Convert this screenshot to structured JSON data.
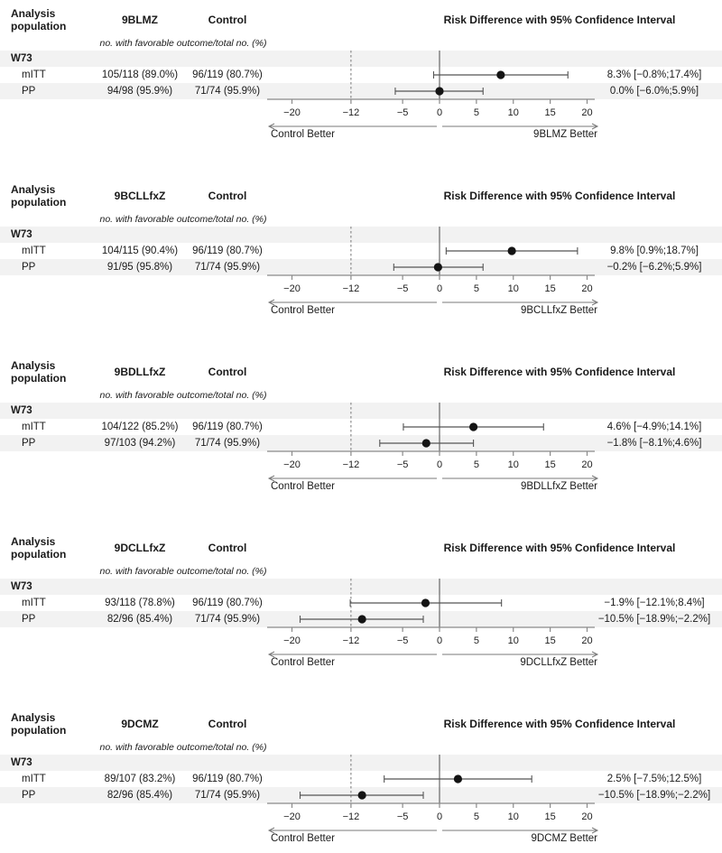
{
  "figure": {
    "col1_header": "Analysis population",
    "control_header": "Control",
    "plot_header": "Risk Difference with 95% Confidence Interval",
    "subtitle": "no. with favorable outcome/total no. (%)",
    "group_label": "W73",
    "left_better": "Control Better"
  },
  "axis": {
    "ticks": [
      -20,
      -12,
      -5,
      0,
      5,
      10,
      15,
      20
    ],
    "min": -23.4,
    "max": 21.0,
    "dashed_reference": -12,
    "solid_reference": 0
  },
  "colors": {
    "row_shade": "#f2f2f2",
    "text": "#1a1a1a",
    "ci_line": "#555555",
    "marker": "#141414",
    "axis": "#8a8a8a",
    "reference_dashed": "#777777",
    "reference_solid": "#4a4a4a",
    "arrow": "#7a7a7a"
  },
  "chart_data": [
    {
      "type": "forest",
      "title": "Risk Difference with 95% Confidence Interval",
      "treatment": "9BLMZ",
      "right_better": "9BLMZ Better",
      "xticks": [
        -20,
        -12,
        -5,
        0,
        5,
        10,
        15,
        20
      ],
      "rows": [
        {
          "population": "mITT",
          "treatment_n": "105/118 (89.0%)",
          "control_n": "96/119 (80.7%)",
          "estimate": 8.3,
          "ci_low": -0.8,
          "ci_high": 17.4,
          "label": "8.3% [−0.8%;17.4%]"
        },
        {
          "population": "PP",
          "treatment_n": "94/98 (95.9%)",
          "control_n": "71/74 (95.9%)",
          "estimate": 0.0,
          "ci_low": -6.0,
          "ci_high": 5.9,
          "label": "0.0% [−6.0%;5.9%]"
        }
      ]
    },
    {
      "type": "forest",
      "title": "Risk Difference with 95% Confidence Interval",
      "treatment": "9BCLLfxZ",
      "right_better": "9BCLLfxZ Better",
      "xticks": [
        -20,
        -12,
        -5,
        0,
        5,
        10,
        15,
        20
      ],
      "rows": [
        {
          "population": "mITT",
          "treatment_n": "104/115 (90.4%)",
          "control_n": "96/119 (80.7%)",
          "estimate": 9.8,
          "ci_low": 0.9,
          "ci_high": 18.7,
          "label": "9.8% [0.9%;18.7%]"
        },
        {
          "population": "PP",
          "treatment_n": "91/95 (95.8%)",
          "control_n": "71/74 (95.9%)",
          "estimate": -0.2,
          "ci_low": -6.2,
          "ci_high": 5.9,
          "label": "−0.2% [−6.2%;5.9%]"
        }
      ]
    },
    {
      "type": "forest",
      "title": "Risk Difference with 95% Confidence Interval",
      "treatment": "9BDLLfxZ",
      "right_better": "9BDLLfxZ Better",
      "xticks": [
        -20,
        -12,
        -5,
        0,
        5,
        10,
        15,
        20
      ],
      "rows": [
        {
          "population": "mITT",
          "treatment_n": "104/122 (85.2%)",
          "control_n": "96/119 (80.7%)",
          "estimate": 4.6,
          "ci_low": -4.9,
          "ci_high": 14.1,
          "label": "4.6% [−4.9%;14.1%]"
        },
        {
          "population": "PP",
          "treatment_n": "97/103 (94.2%)",
          "control_n": "71/74 (95.9%)",
          "estimate": -1.8,
          "ci_low": -8.1,
          "ci_high": 4.6,
          "label": "−1.8% [−8.1%;4.6%]"
        }
      ]
    },
    {
      "type": "forest",
      "title": "Risk Difference with 95% Confidence Interval",
      "treatment": "9DCLLfxZ",
      "right_better": "9DCLLfxZ Better",
      "xticks": [
        -20,
        -12,
        -5,
        0,
        5,
        10,
        15,
        20
      ],
      "rows": [
        {
          "population": "mITT",
          "treatment_n": "93/118 (78.8%)",
          "control_n": "96/119 (80.7%)",
          "estimate": -1.9,
          "ci_low": -12.1,
          "ci_high": 8.4,
          "label": "−1.9% [−12.1%;8.4%]"
        },
        {
          "population": "PP",
          "treatment_n": "82/96 (85.4%)",
          "control_n": "71/74 (95.9%)",
          "estimate": -10.5,
          "ci_low": -18.9,
          "ci_high": -2.2,
          "label": "−10.5% [−18.9%;−2.2%]"
        }
      ]
    },
    {
      "type": "forest",
      "title": "Risk Difference with 95% Confidence Interval",
      "treatment": "9DCMZ",
      "right_better": "9DCMZ Better",
      "xticks": [
        -20,
        -12,
        -5,
        0,
        5,
        10,
        15,
        20
      ],
      "rows": [
        {
          "population": "mITT",
          "treatment_n": "89/107 (83.2%)",
          "control_n": "96/119 (80.7%)",
          "estimate": 2.5,
          "ci_low": -7.5,
          "ci_high": 12.5,
          "label": "2.5% [−7.5%;12.5%]"
        },
        {
          "population": "PP",
          "treatment_n": "82/96 (85.4%)",
          "control_n": "71/74 (95.9%)",
          "estimate": -10.5,
          "ci_low": -18.9,
          "ci_high": -2.2,
          "label": "−10.5% [−18.9%;−2.2%]"
        }
      ]
    }
  ]
}
